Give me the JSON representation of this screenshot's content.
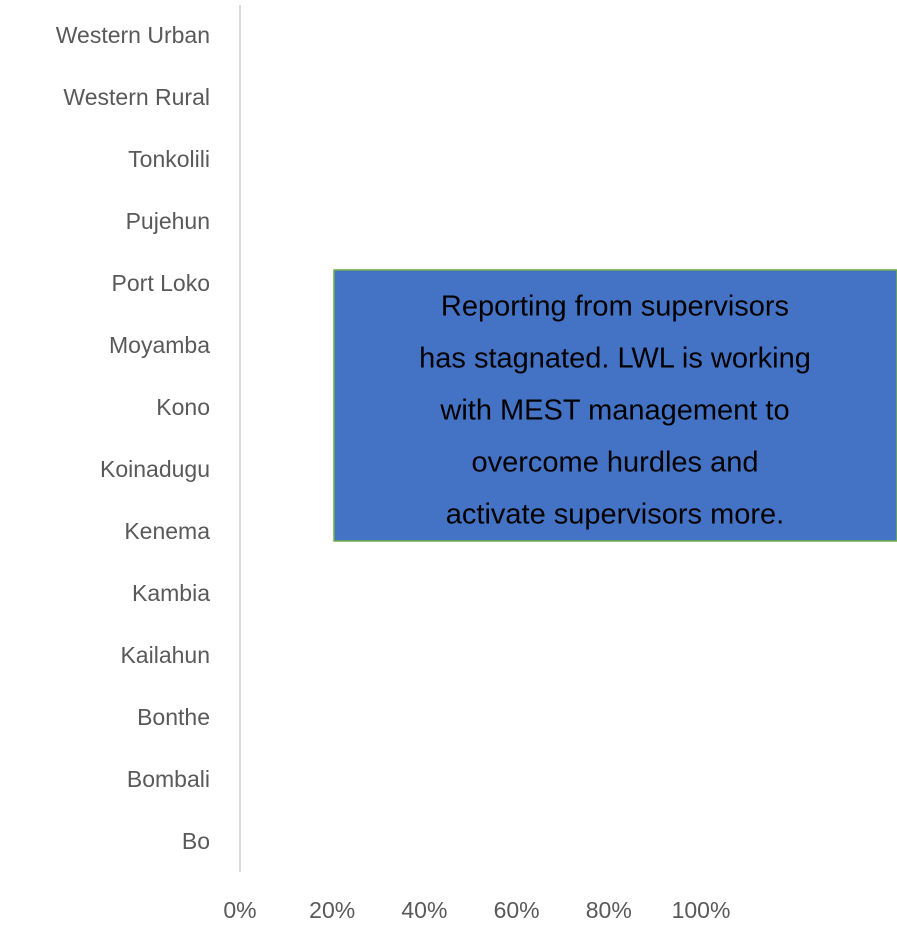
{
  "chart_data": {
    "type": "barh",
    "categories": [
      "Bo",
      "Bombali",
      "Bonthe",
      "Kailahun",
      "Kambia",
      "Kenema",
      "Koinadugu",
      "Kono",
      "Moyamba",
      "Port Loko",
      "Pujehun",
      "Tonkolili",
      "Western Rural",
      "Western Urban"
    ],
    "values": [
      0,
      0,
      0,
      0,
      0,
      0,
      0,
      0,
      0,
      0,
      0,
      0,
      0,
      0
    ],
    "color": "#4472c4",
    "xlim": [
      0,
      100
    ],
    "xticks": [
      {
        "value": 0,
        "label": "0%"
      },
      {
        "value": 20,
        "label": "20%"
      },
      {
        "value": 40,
        "label": "40%"
      },
      {
        "value": 60,
        "label": "60%"
      },
      {
        "value": 80,
        "label": "80%"
      },
      {
        "value": 100,
        "label": "100%"
      }
    ],
    "annotation": [
      "Reporting from supervisors",
      "has stagnated. LWL is working",
      "with MEST management to",
      "overcome hurdles and",
      "activate supervisors more."
    ]
  }
}
